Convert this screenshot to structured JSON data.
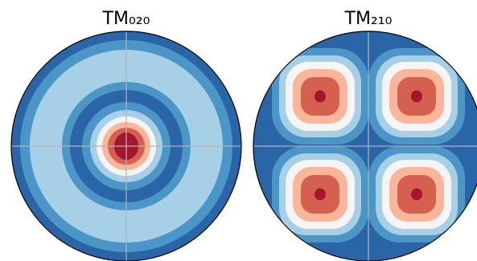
{
  "chart_data": [
    {
      "type": "contour",
      "title": "TM₀₂₀"
    },
    {
      "type": "contour",
      "title": "TM₂₁₀"
    }
  ]
}
